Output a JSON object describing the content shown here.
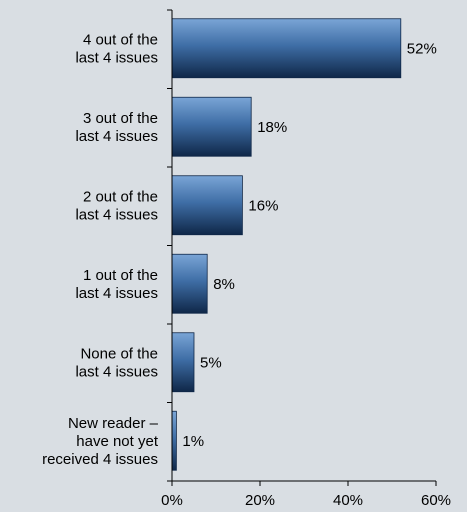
{
  "chart_data": {
    "type": "bar",
    "orientation": "horizontal",
    "categories": [
      [
        "4 out of the",
        "last 4 issues"
      ],
      [
        "3 out of the",
        "last 4 issues"
      ],
      [
        "2 out of the",
        "last 4 issues"
      ],
      [
        "1 out of the",
        "last 4 issues"
      ],
      [
        "None of the",
        "last 4 issues"
      ],
      [
        "New reader –",
        "have not yet",
        "received 4 issues"
      ]
    ],
    "values": [
      52,
      18,
      16,
      8,
      5,
      1
    ],
    "value_labels": [
      "52%",
      "18%",
      "16%",
      "8%",
      "5%",
      "1%"
    ],
    "xlim": [
      0,
      60
    ],
    "x_ticks": [
      0,
      20,
      40,
      60
    ],
    "x_tick_labels": [
      "0%",
      "20%",
      "40%",
      "60%"
    ],
    "title": "",
    "xlabel": "",
    "ylabel": "",
    "grid": false,
    "legend": "none",
    "colors": {
      "background": "#d9dee3",
      "bar_dark": "#0f2748",
      "bar_mid": "#3f6ea6",
      "bar_light": "#7aa5d6",
      "axis": "#000000"
    }
  }
}
